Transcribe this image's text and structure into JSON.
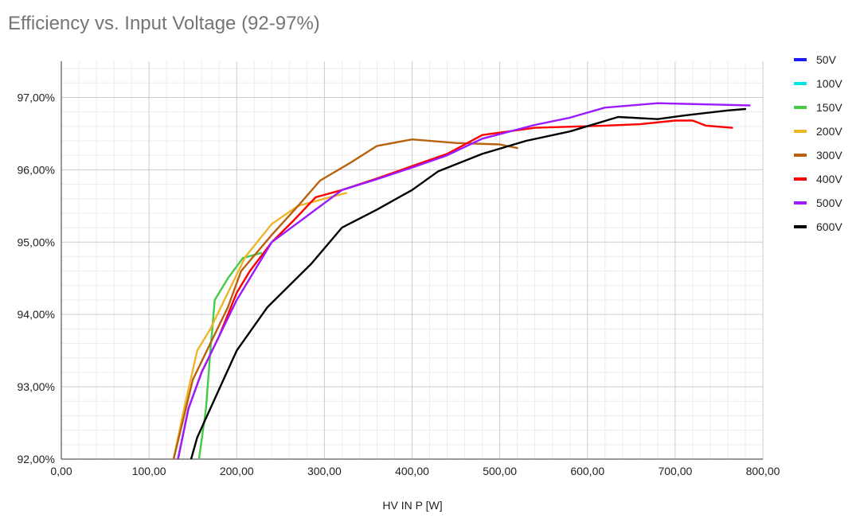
{
  "chart_data": {
    "type": "line",
    "title": "Efficiency vs. Input Voltage (92-97%)",
    "xlabel": "HV IN P [W]",
    "ylabel": "",
    "xlim": [
      0,
      800
    ],
    "ylim": [
      92,
      97.5
    ],
    "x_ticks": [
      0,
      100,
      200,
      300,
      400,
      500,
      600,
      700,
      800
    ],
    "x_tick_labels": [
      "0,00",
      "100,00",
      "200,00",
      "300,00",
      "400,00",
      "500,00",
      "600,00",
      "700,00",
      "800,00"
    ],
    "y_ticks": [
      92,
      93,
      94,
      95,
      96,
      97
    ],
    "y_tick_labels": [
      "92,00%",
      "93,00%",
      "94,00%",
      "95,00%",
      "96,00%",
      "97,00%"
    ],
    "grid": true,
    "legend_position": "right",
    "series": [
      {
        "name": "50V",
        "color": "#1a1aff",
        "points": []
      },
      {
        "name": "100V",
        "color": "#00e5e5",
        "points": [
          [
            128,
            92.0
          ],
          [
            136,
            92.4
          ],
          [
            142,
            92.7
          ]
        ]
      },
      {
        "name": "150V",
        "color": "#44cc44",
        "points": [
          [
            157,
            92.0
          ],
          [
            165,
            92.7
          ],
          [
            170,
            93.5
          ],
          [
            175,
            94.2
          ],
          [
            190,
            94.5
          ],
          [
            207,
            94.78
          ],
          [
            228,
            94.85
          ]
        ]
      },
      {
        "name": "200V",
        "color": "#f0b428",
        "points": [
          [
            128,
            92.0
          ],
          [
            140,
            92.7
          ],
          [
            155,
            93.5
          ],
          [
            170,
            93.8
          ],
          [
            190,
            94.3
          ],
          [
            210,
            94.8
          ],
          [
            240,
            95.25
          ],
          [
            270,
            95.5
          ],
          [
            300,
            95.6
          ],
          [
            325,
            95.68
          ]
        ]
      },
      {
        "name": "300V",
        "color": "#b8620f",
        "points": [
          [
            128,
            92.0
          ],
          [
            140,
            92.6
          ],
          [
            150,
            93.1
          ],
          [
            170,
            93.6
          ],
          [
            190,
            94.1
          ],
          [
            205,
            94.6
          ],
          [
            240,
            95.1
          ],
          [
            270,
            95.5
          ],
          [
            295,
            95.85
          ],
          [
            330,
            96.1
          ],
          [
            360,
            96.33
          ],
          [
            400,
            96.42
          ],
          [
            450,
            96.37
          ],
          [
            500,
            96.35
          ],
          [
            520,
            96.3
          ]
        ]
      },
      {
        "name": "400V",
        "color": "#ff0000",
        "points": [
          [
            133,
            92.0
          ],
          [
            145,
            92.7
          ],
          [
            160,
            93.2
          ],
          [
            180,
            93.7
          ],
          [
            200,
            94.3
          ],
          [
            215,
            94.6
          ],
          [
            240,
            95.0
          ],
          [
            265,
            95.3
          ],
          [
            290,
            95.62
          ],
          [
            320,
            95.72
          ],
          [
            360,
            95.88
          ],
          [
            400,
            96.05
          ],
          [
            440,
            96.22
          ],
          [
            480,
            96.48
          ],
          [
            540,
            96.58
          ],
          [
            620,
            96.61
          ],
          [
            660,
            96.63
          ],
          [
            700,
            96.68
          ],
          [
            720,
            96.68
          ],
          [
            735,
            96.61
          ],
          [
            765,
            96.58
          ]
        ]
      },
      {
        "name": "500V",
        "color": "#9b1aff",
        "points": [
          [
            133,
            92.0
          ],
          [
            145,
            92.7
          ],
          [
            160,
            93.2
          ],
          [
            180,
            93.7
          ],
          [
            200,
            94.2
          ],
          [
            215,
            94.5
          ],
          [
            240,
            95.0
          ],
          [
            290,
            95.45
          ],
          [
            320,
            95.72
          ],
          [
            360,
            95.87
          ],
          [
            400,
            96.03
          ],
          [
            440,
            96.2
          ],
          [
            480,
            96.43
          ],
          [
            540,
            96.62
          ],
          [
            580,
            96.72
          ],
          [
            620,
            96.86
          ],
          [
            680,
            96.92
          ],
          [
            785,
            96.89
          ]
        ]
      },
      {
        "name": "600V",
        "color": "#000000",
        "points": [
          [
            148,
            92.0
          ],
          [
            155,
            92.3
          ],
          [
            170,
            92.7
          ],
          [
            185,
            93.1
          ],
          [
            200,
            93.5
          ],
          [
            235,
            94.1
          ],
          [
            285,
            94.7
          ],
          [
            320,
            95.2
          ],
          [
            360,
            95.45
          ],
          [
            400,
            95.72
          ],
          [
            430,
            95.98
          ],
          [
            480,
            96.22
          ],
          [
            530,
            96.4
          ],
          [
            580,
            96.53
          ],
          [
            635,
            96.73
          ],
          [
            680,
            96.7
          ],
          [
            710,
            96.75
          ],
          [
            760,
            96.82
          ],
          [
            780,
            96.84
          ]
        ]
      }
    ]
  }
}
